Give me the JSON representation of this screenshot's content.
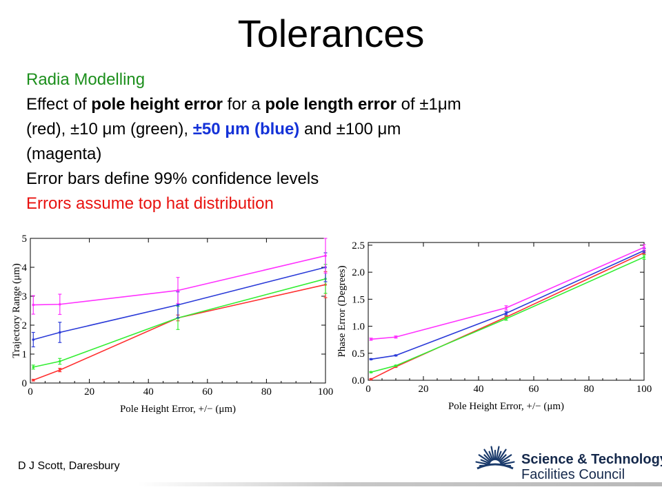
{
  "slide": {
    "title": "Tolerances",
    "subtitle": "Radia Modelling",
    "line1_a": "Effect of ",
    "line1_b": "pole height error",
    "line1_c": " for a ",
    "line1_d": "pole length error",
    "line1_e": " of ±1μm",
    "line2_a": "(red), ±10 μm (green), ",
    "line2_b": "±50 μm (blue)",
    "line2_c": " and ±100 μm",
    "line3": "(magenta)",
    "line4": "Error bars define 99% confidence levels",
    "line5": "Errors assume top hat distribution",
    "footer": "D J Scott, Daresbury",
    "logo_line1": "Science & Technology",
    "logo_line2": "Facilities Council",
    "colors": {
      "subtitle": "#1c8f1c",
      "warning": "#e8120f",
      "blue_text": "#1432d8"
    }
  },
  "chart_data": [
    {
      "type": "line",
      "xlabel": "Pole Height Error, +/− (μm)",
      "ylabel": "Trajectory Range (μm)",
      "xlim": [
        0,
        100
      ],
      "ylim": [
        0,
        5
      ],
      "xticks": [
        "0",
        "20",
        "40",
        "60",
        "80",
        "100"
      ],
      "yticks": [
        "0",
        "1",
        "2",
        "3",
        "4",
        "5"
      ],
      "x": [
        1,
        10,
        50,
        100
      ],
      "series": [
        {
          "color": "#ff3030",
          "values": [
            0.1,
            0.45,
            2.25,
            3.4
          ],
          "err": [
            0.03,
            0.06,
            0.1,
            0.45
          ]
        },
        {
          "color": "#33ee33",
          "values": [
            0.55,
            0.75,
            2.25,
            3.6
          ],
          "err": [
            0.07,
            0.1,
            0.4,
            0.5
          ]
        },
        {
          "color": "#2a3ad8",
          "values": [
            1.5,
            1.75,
            2.7,
            4.0
          ],
          "err": [
            0.25,
            0.35,
            0.45,
            0.5
          ]
        },
        {
          "color": "#ff30ff",
          "values": [
            2.7,
            2.72,
            3.2,
            4.4
          ],
          "err": [
            0.32,
            0.35,
            0.45,
            0.6
          ]
        }
      ]
    },
    {
      "type": "line",
      "xlabel": "Pole Height Error, +/− (μm)",
      "ylabel": "Phase Error (Degrees)",
      "xlim": [
        0,
        100
      ],
      "ylim": [
        0,
        2.55
      ],
      "xticks": [
        "0",
        "20",
        "40",
        "60",
        "80",
        "100"
      ],
      "yticks": [
        "0.0",
        "0.5",
        "1.0",
        "1.5",
        "2.0",
        "2.5"
      ],
      "x": [
        1,
        10,
        50,
        100
      ],
      "series": [
        {
          "color": "#ff3030",
          "values": [
            0.02,
            0.25,
            1.17,
            2.36
          ],
          "err": [
            0.01,
            0.01,
            0.02,
            0.03
          ]
        },
        {
          "color": "#33ee33",
          "values": [
            0.15,
            0.27,
            1.14,
            2.28
          ],
          "err": [
            0.01,
            0.01,
            0.03,
            0.04
          ]
        },
        {
          "color": "#2a3ad8",
          "values": [
            0.39,
            0.46,
            1.24,
            2.4
          ],
          "err": [
            0.01,
            0.01,
            0.03,
            0.04
          ]
        },
        {
          "color": "#ff30ff",
          "values": [
            0.76,
            0.8,
            1.34,
            2.46
          ],
          "err": [
            0.02,
            0.02,
            0.04,
            0.05
          ]
        }
      ]
    }
  ]
}
